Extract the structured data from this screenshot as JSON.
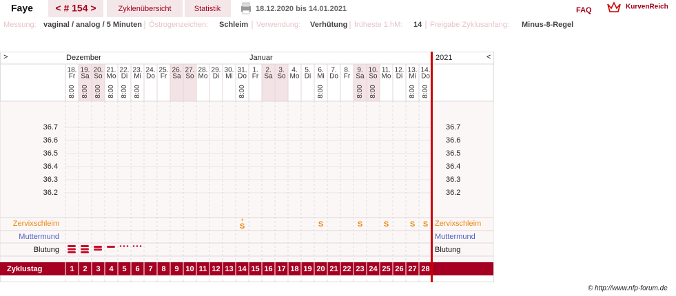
{
  "header": {
    "name": "Faye",
    "cycle": "< # 154 >",
    "tabs": [
      "Zyklenübersicht",
      "Statistik"
    ],
    "period": "18.12.2020 bis 14.01.2021",
    "faq": "FAQ",
    "logo": "KurvenReich"
  },
  "settings": [
    {
      "label": "Messung:",
      "value": "vaginal / analog / 5 Minuten"
    },
    {
      "label": "Östrogenzeichen:",
      "value": "Schleim"
    },
    {
      "label": "Verwendung:",
      "value": "Verhütung"
    },
    {
      "label": "früheste 1.hM:",
      "value": "14"
    },
    {
      "label": "Freigabe Zyklusanfang:",
      "value": "Minus-8-Regel"
    }
  ],
  "table": {
    "left_arrow": ">",
    "right_arrow": "<",
    "months": [
      "Dezember",
      "Januar"
    ],
    "year": "2021",
    "days": [
      {
        "date": "18.",
        "weekday": "Fr",
        "time": "8:00"
      },
      {
        "date": "19.",
        "weekday": "Sa",
        "time": "8:00"
      },
      {
        "date": "20.",
        "weekday": "So",
        "time": "8:00"
      },
      {
        "date": "21.",
        "weekday": "Mo",
        "time": "8:00"
      },
      {
        "date": "22.",
        "weekday": "Di",
        "time": "8:00"
      },
      {
        "date": "23.",
        "weekday": "Mi",
        "time": "8:00"
      },
      {
        "date": "24.",
        "weekday": "Do"
      },
      {
        "date": "25.",
        "weekday": "Fr"
      },
      {
        "date": "26.",
        "weekday": "Sa"
      },
      {
        "date": "27.",
        "weekday": "So"
      },
      {
        "date": "28.",
        "weekday": "Mo"
      },
      {
        "date": "29.",
        "weekday": "Di"
      },
      {
        "date": "30.",
        "weekday": "Mi"
      },
      {
        "date": "31.",
        "weekday": "Do",
        "time": "8:00"
      },
      {
        "date": "1.",
        "weekday": "Fr"
      },
      {
        "date": "2.",
        "weekday": "Sa"
      },
      {
        "date": "3.",
        "weekday": "So"
      },
      {
        "date": "4.",
        "weekday": "Mo"
      },
      {
        "date": "5.",
        "weekday": "Di"
      },
      {
        "date": "6.",
        "weekday": "Mi",
        "time": "8:00"
      },
      {
        "date": "7.",
        "weekday": "Do"
      },
      {
        "date": "8.",
        "weekday": "Fr"
      },
      {
        "date": "9.",
        "weekday": "Sa",
        "time": "8:00"
      },
      {
        "date": "10.",
        "weekday": "So",
        "time": "8:00"
      },
      {
        "date": "11.",
        "weekday": "Mo"
      },
      {
        "date": "12.",
        "weekday": "Di"
      },
      {
        "date": "13.",
        "weekday": "Mi",
        "time": "8:00"
      },
      {
        "date": "14.",
        "weekday": "Do",
        "time": "8:00"
      }
    ],
    "temperature_scale": [
      36.7,
      36.6,
      36.5,
      36.4,
      36.3,
      36.2
    ],
    "row_labels": {
      "cervix": "Zervixschleim",
      "cervix_os": "Muttermund",
      "bleeding": "Blutung",
      "cycle_day": "Zyklustag"
    },
    "cervix": [
      null,
      null,
      null,
      null,
      null,
      null,
      null,
      null,
      null,
      null,
      null,
      null,
      null,
      "S",
      null,
      null,
      null,
      null,
      null,
      "S",
      null,
      null,
      "S",
      null,
      "S",
      null,
      "S",
      "S"
    ],
    "cervix_plus": [
      null,
      null,
      null,
      null,
      null,
      null,
      null,
      null,
      null,
      null,
      null,
      null,
      null,
      "+",
      null,
      null,
      null,
      null,
      null,
      null,
      null,
      null,
      null,
      null,
      null,
      null,
      null,
      null
    ],
    "cycle_days": [
      1,
      2,
      3,
      4,
      5,
      6,
      7,
      8,
      9,
      10,
      11,
      12,
      13,
      14,
      15,
      16,
      17,
      18,
      19,
      20,
      21,
      22,
      23,
      24,
      25,
      26,
      27,
      28
    ]
  },
  "footer": "© http://www.nfp-forum.de"
}
